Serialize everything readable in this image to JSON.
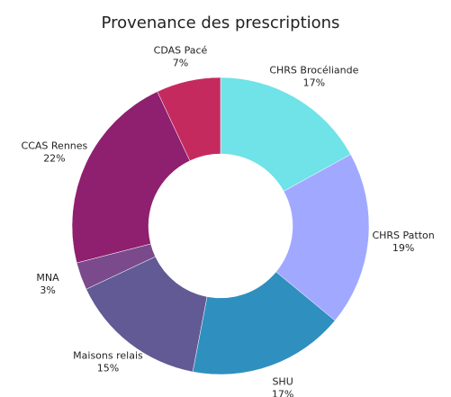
{
  "chart_data": {
    "type": "donut",
    "title": "Provenance des prescriptions",
    "categories": [
      "CHRS Brocéliande",
      "CHRS Patton",
      "SHU",
      "Maisons relais",
      "MNA",
      "CCAS Rennes",
      "CDAS Pacé"
    ],
    "values": [
      17,
      19,
      17,
      15,
      3,
      22,
      7
    ],
    "value_labels": [
      "17%",
      "19%",
      "17%",
      "15%",
      "3%",
      "22%",
      "7%"
    ],
    "colors": [
      "#6fe3e7",
      "#a0a9ff",
      "#2f8fbf",
      "#625a94",
      "#7a4a8c",
      "#8f1f6f",
      "#c52a5f"
    ]
  }
}
